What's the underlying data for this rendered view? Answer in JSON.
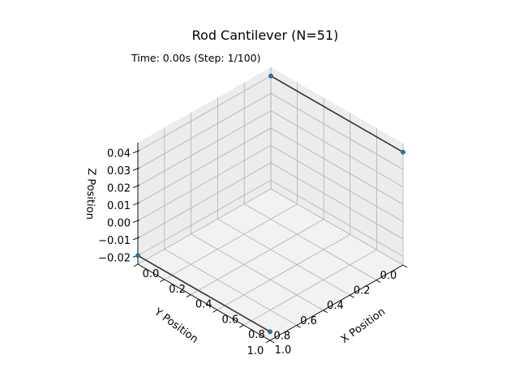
{
  "chart_data": {
    "type": "3d-line",
    "title": "Rod Cantilever (N=51)",
    "annotation": "Time: 0.00s (Step: 1/100)",
    "xlabel": "X Position",
    "ylabel": "Y Position",
    "zlabel": "Z Position",
    "xlim": [
      0.0,
      1.0
    ],
    "ylim": [
      0.0,
      1.0
    ],
    "zlim": [
      -0.025,
      0.045
    ],
    "x_ticks": [
      "0.0",
      "0.2",
      "0.4",
      "0.6",
      "0.8",
      "1.0"
    ],
    "y_ticks": [
      "0.0",
      "0.2",
      "0.4",
      "0.6",
      "0.8",
      "1.0"
    ],
    "z_ticks": [
      "−0.02",
      "−0.01",
      "0.00",
      "0.01",
      "0.02",
      "0.03",
      "0.04"
    ],
    "x_tick_values": [
      0.0,
      0.2,
      0.4,
      0.6,
      0.8,
      1.0
    ],
    "y_tick_values": [
      0.0,
      0.2,
      0.4,
      0.6,
      0.8,
      1.0
    ],
    "z_tick_values": [
      -0.02,
      -0.01,
      0.0,
      0.01,
      0.02,
      0.03,
      0.04
    ],
    "grid": true,
    "colors": {
      "line": "#333333",
      "marker": "#1f77b4",
      "pane": "#f2f2f2",
      "grid": "#b0b0b0"
    },
    "series": [
      {
        "x": [
          0.0,
          1.0
        ],
        "y": [
          0.0,
          0.0
        ],
        "z": [
          0.04,
          0.04
        ]
      },
      {
        "x": [
          0.0,
          1.0
        ],
        "y": [
          1.0,
          1.0
        ],
        "z": [
          -0.02,
          -0.02
        ]
      }
    ]
  }
}
